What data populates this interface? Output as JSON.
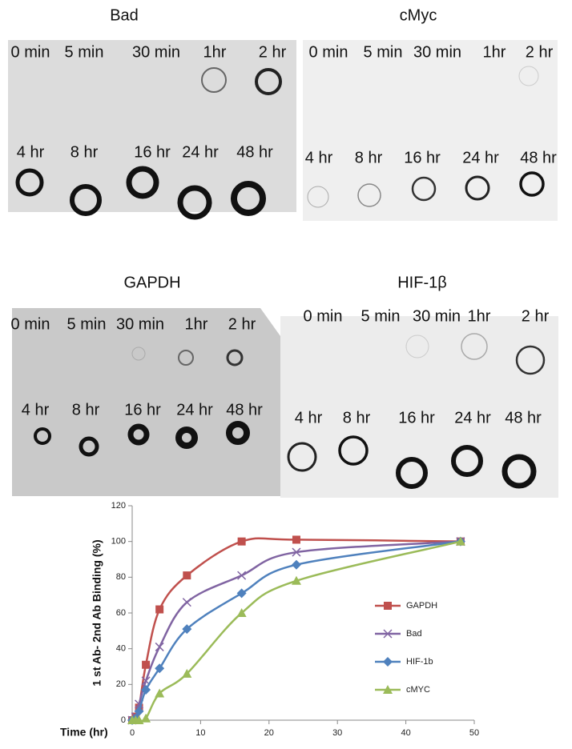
{
  "panels": [
    {
      "title": "Bad",
      "row1": [
        "0 min",
        "5 min",
        "30 min",
        "1hr",
        "2 hr"
      ],
      "row2": [
        "4 hr",
        "8 hr",
        "16 hr",
        "24 hr",
        "48 hr"
      ]
    },
    {
      "title": "cMyc",
      "row1": [
        "0 min",
        "5 min",
        "30 min",
        "1hr",
        "2 hr"
      ],
      "row2": [
        "4 hr",
        "8 hr",
        "16 hr",
        "24 hr",
        "48 hr"
      ]
    },
    {
      "title": "GAPDH",
      "row1": [
        "0 min",
        "5 min",
        "30 min",
        "1hr",
        "2 hr"
      ],
      "row2": [
        "4 hr",
        "8 hr",
        "16 hr",
        "24 hr",
        "48 hr"
      ]
    },
    {
      "title": "HIF-1β",
      "row1": [
        "0 min",
        "5 min",
        "30 min",
        "1hr",
        "2 hr"
      ],
      "row2": [
        "4 hr",
        "8 hr",
        "16 hr",
        "24 hr",
        "48 hr"
      ]
    }
  ],
  "chart_data": {
    "type": "line",
    "x_label": "Time (hr)",
    "y_label": "1 st Ab- 2nd Ab Binding (%)",
    "x": [
      0,
      0.5,
      1,
      2,
      4,
      8,
      16,
      24,
      48
    ],
    "series": [
      {
        "name": "GAPDH",
        "color": "#c0504d",
        "marker": "square",
        "values": [
          0,
          2,
          7,
          31,
          62,
          81,
          100,
          101,
          100
        ]
      },
      {
        "name": "Bad",
        "color": "#8064a2",
        "marker": "x",
        "values": [
          0,
          2,
          9,
          22,
          41,
          66,
          81,
          94,
          100
        ]
      },
      {
        "name": "HIF-1b",
        "color": "#4f81bd",
        "marker": "diamond",
        "values": [
          0,
          1,
          5,
          17,
          29,
          51,
          71,
          87,
          100
        ]
      },
      {
        "name": "cMYC",
        "color": "#9bbb59",
        "marker": "triangle",
        "values": [
          0,
          0,
          0,
          1,
          15,
          26,
          60,
          78,
          100
        ]
      }
    ],
    "xlim": [
      0,
      50
    ],
    "xticks": [
      0,
      10,
      20,
      30,
      40,
      50
    ],
    "ylim": [
      0,
      120
    ],
    "yticks": [
      0,
      20,
      40,
      60,
      80,
      100,
      120
    ]
  }
}
